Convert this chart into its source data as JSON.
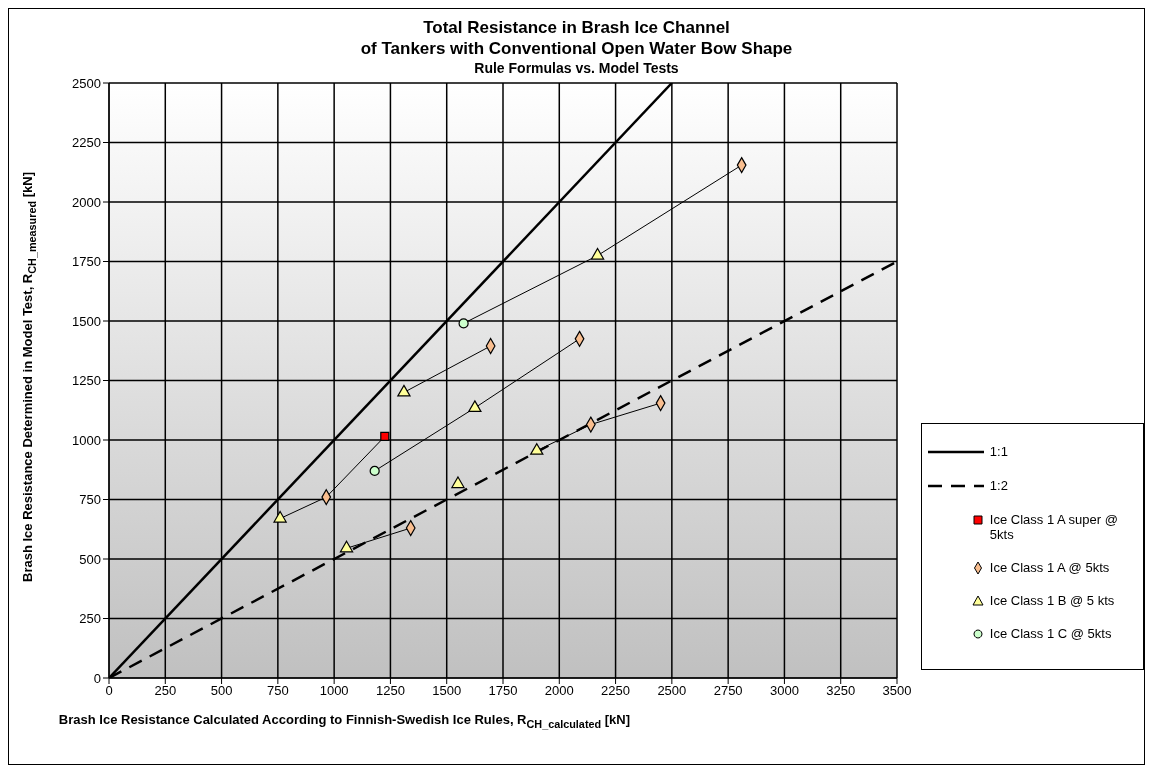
{
  "chart_data": {
    "type": "scatter",
    "title": "Total Resistance in Brash Ice Channel\nof Tankers with Conventional Open Water Bow Shape",
    "subtitle": "Rule Formulas vs. Model Tests",
    "xlabel": "Brash Ice Resistance Calculated According to Finnish-Swedish Ice Rules, R$_{CH_calculated}$ [kN]",
    "ylabel": "Brash Ice Resistance Determined in Model Test, R$_{CH_measured}$ [kN]",
    "xlim": [
      0,
      3500
    ],
    "xticks": [
      0,
      250,
      500,
      750,
      1000,
      1250,
      1500,
      1750,
      2000,
      2250,
      2500,
      2750,
      3000,
      3250,
      3500
    ],
    "ylim": [
      0,
      2500
    ],
    "yticks": [
      0,
      250,
      500,
      750,
      1000,
      1250,
      1500,
      1750,
      2000,
      2250,
      2500
    ],
    "grid": true,
    "legend": "right",
    "series": [
      {
        "type": "line",
        "name": "1:1",
        "color": "#000000",
        "line_style": "solid",
        "marker": "none",
        "x": [
          0,
          2500
        ],
        "values": [
          0,
          2500
        ]
      },
      {
        "type": "line",
        "name": "1:2",
        "color": "#000000",
        "line_style": "dashed",
        "marker": "none",
        "x": [
          0,
          3500
        ],
        "values": [
          0,
          1750
        ]
      },
      {
        "type": "line",
        "color": "#000000",
        "line_style": "solid",
        "marker": "none",
        "x": [
          760,
          965,
          1225
        ],
        "values": [
          670,
          760,
          1015
        ]
      },
      {
        "type": "line",
        "color": "#000000",
        "line_style": "solid",
        "marker": "none",
        "x": [
          1180,
          1625,
          2090
        ],
        "values": [
          870,
          1135,
          1425
        ]
      },
      {
        "type": "line",
        "color": "#000000",
        "line_style": "solid",
        "marker": "none",
        "x": [
          1310,
          1695
        ],
        "values": [
          1200,
          1395
        ]
      },
      {
        "type": "line",
        "color": "#000000",
        "line_style": "solid",
        "marker": "none",
        "x": [
          1575,
          2170,
          2810
        ],
        "values": [
          1490,
          1775,
          2155
        ]
      },
      {
        "type": "line",
        "color": "#000000",
        "line_style": "solid",
        "marker": "none",
        "x": [
          1055,
          1340
        ],
        "values": [
          545,
          630
        ]
      },
      {
        "type": "line",
        "color": "#000000",
        "line_style": "solid",
        "marker": "none",
        "x": [
          1900,
          2140,
          2450
        ],
        "values": [
          955,
          1065,
          1155
        ]
      },
      {
        "name": "Ice Class 1 A super @ 5kts",
        "color": "#ff0000",
        "marker": "square",
        "x": [
          1225
        ],
        "values": [
          1015
        ]
      },
      {
        "name": "Ice Class 1 A @ 5kts",
        "color": "#f9be8f",
        "marker": "diamond",
        "x": [
          965,
          1340,
          1695,
          2090,
          2140,
          2450,
          2810
        ],
        "values": [
          760,
          630,
          1395,
          1425,
          1065,
          1155,
          2155
        ]
      },
      {
        "name": "Ice Class 1 B @ 5 kts",
        "color": "#ffff99",
        "marker": "triangle",
        "x": [
          760,
          1055,
          1310,
          1550,
          1625,
          1900,
          2170
        ],
        "values": [
          670,
          545,
          1200,
          815,
          1135,
          955,
          1775
        ]
      },
      {
        "name": "Ice Class 1 C @ 5kts",
        "color": "#ccffcc",
        "marker": "circle",
        "x": [
          1180,
          1575
        ],
        "values": [
          870,
          1490
        ]
      }
    ]
  }
}
